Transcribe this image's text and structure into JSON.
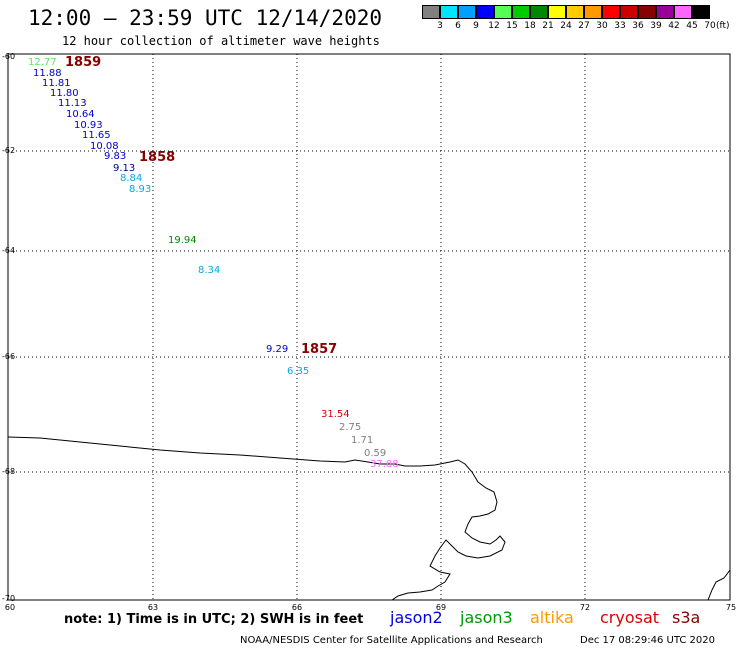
{
  "header": {
    "title": "12:00 – 23:59 UTC 12/14/2020",
    "subtitle": "12 hour collection of altimeter wave heights"
  },
  "legend": {
    "unit": "(ft)",
    "colors": [
      "#808080",
      "#00e5ff",
      "#00a0ff",
      "#0000ff",
      "#55ff55",
      "#00cc00",
      "#008800",
      "#ffff00",
      "#ffcc00",
      "#ff9900",
      "#ff0000",
      "#cc0000",
      "#880000",
      "#990099",
      "#ff66ff",
      "#000000"
    ],
    "ticks": [
      "3",
      "6",
      "9",
      "12",
      "15",
      "18",
      "21",
      "24",
      "27",
      "30",
      "33",
      "36",
      "39",
      "42",
      "45",
      "70"
    ]
  },
  "map": {
    "y_labels": [
      "-60",
      "-62",
      "-64",
      "-66",
      "-68",
      "-70"
    ],
    "x_labels": [
      "60",
      "63",
      "66",
      "69",
      "72",
      "75"
    ],
    "wave_values": [
      {
        "text": "12.77",
        "color": "#55ee55"
      },
      {
        "text": "11.88",
        "color": "#0000cc"
      },
      {
        "text": "11.81",
        "color": "#0000cc"
      },
      {
        "text": "11.80",
        "color": "#0000cc"
      },
      {
        "text": "11.13",
        "color": "#0000cc"
      },
      {
        "text": "10.64",
        "color": "#0000cc"
      },
      {
        "text": "10.93",
        "color": "#0000cc"
      },
      {
        "text": "11.65",
        "color": "#0000cc"
      },
      {
        "text": "10.08",
        "color": "#0000cc"
      },
      {
        "text": "9.83",
        "color": "#0000cc"
      },
      {
        "text": "9.13",
        "color": "#000088"
      },
      {
        "text": "8.84",
        "color": "#00aadd"
      },
      {
        "text": "8.93",
        "color": "#00aadd"
      },
      {
        "text": "19.94",
        "color": "#008800"
      },
      {
        "text": "8.34",
        "color": "#00aadd"
      },
      {
        "text": "9.29",
        "color": "#0000cc"
      },
      {
        "text": "6.35",
        "color": "#00aadd"
      },
      {
        "text": "31.54",
        "color": "#dd0000"
      },
      {
        "text": "2.75",
        "color": "#808080"
      },
      {
        "text": "1.71",
        "color": "#808080"
      },
      {
        "text": "0.59",
        "color": "#808080"
      },
      {
        "text": "37.88",
        "color": "#ff66ff"
      }
    ],
    "time_labels": [
      "1859",
      "1858",
      "1857"
    ],
    "time_color": "#880000"
  },
  "footer": {
    "note": "note: 1) Time is in UTC; 2) SWH is in feet",
    "satellites": [
      {
        "name": "jason2",
        "color": "#0000dd"
      },
      {
        "name": "jason3",
        "color": "#009900"
      },
      {
        "name": "altika",
        "color": "#ff9900"
      },
      {
        "name": "cryosat",
        "color": "#dd0000"
      },
      {
        "name": "s3a",
        "color": "#880000"
      }
    ],
    "credit": "NOAA/NESDIS Center for Satellite Applications and Research",
    "timestamp": "Dec 17 08:29:46 UTC 2020"
  }
}
